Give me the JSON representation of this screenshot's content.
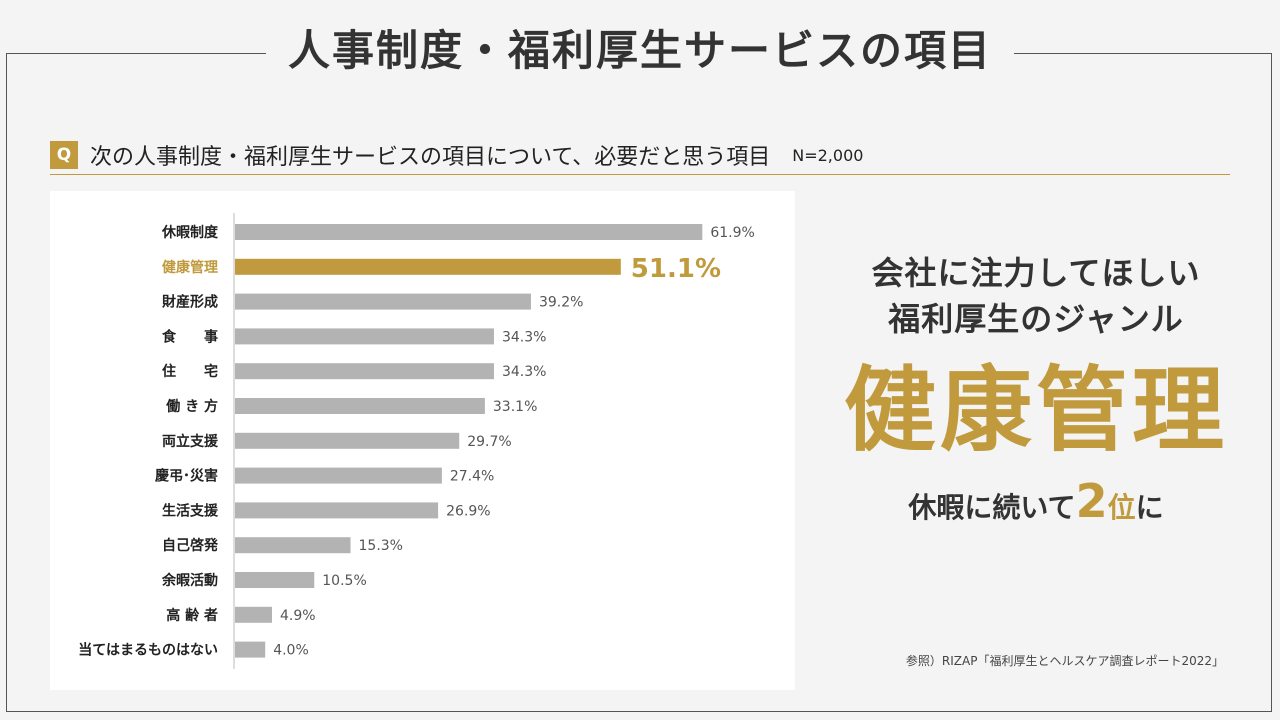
{
  "title": "人事制度・福利厚生サービスの項目",
  "question": {
    "badge": "Q",
    "text": "次の人事制度・福利厚生サービスの項目について、必要だと思う項目",
    "n": "N=2,000"
  },
  "colors": {
    "accent": "#c09a3c",
    "bar": "#b3b3b3"
  },
  "chart_data": {
    "type": "bar",
    "orientation": "horizontal",
    "categories": [
      "休暇制度",
      "健康管理",
      "財産形成",
      "食　　事",
      "住　　宅",
      "働 き 方",
      "両立支援",
      "慶弔･災害",
      "生活支援",
      "自己啓発",
      "余暇活動",
      "高 齢 者",
      "当てはまるものはない"
    ],
    "values": [
      61.9,
      51.1,
      39.2,
      34.3,
      34.3,
      33.1,
      29.7,
      27.4,
      26.9,
      15.3,
      10.5,
      4.9,
      4.0
    ],
    "value_labels": [
      "61.9%",
      "51.1%",
      "39.2%",
      "34.3%",
      "34.3%",
      "33.1%",
      "29.7%",
      "27.4%",
      "26.9%",
      "15.3%",
      "10.5%",
      "4.9%",
      "4.0%"
    ],
    "highlight_index": 1,
    "unit": "%",
    "xlim": [
      0,
      70
    ]
  },
  "highlight": {
    "headline_line1": "会社に注力してほしい",
    "headline_line2": "福利厚生のジャンル",
    "big_word": "健康管理",
    "sub_prefix": "休暇に続いて",
    "rank_number": "2",
    "rank_unit": "位",
    "sub_suffix": "に"
  },
  "source": "参照）RIZAP「福利厚生とヘルスケア調査レポート2022」"
}
